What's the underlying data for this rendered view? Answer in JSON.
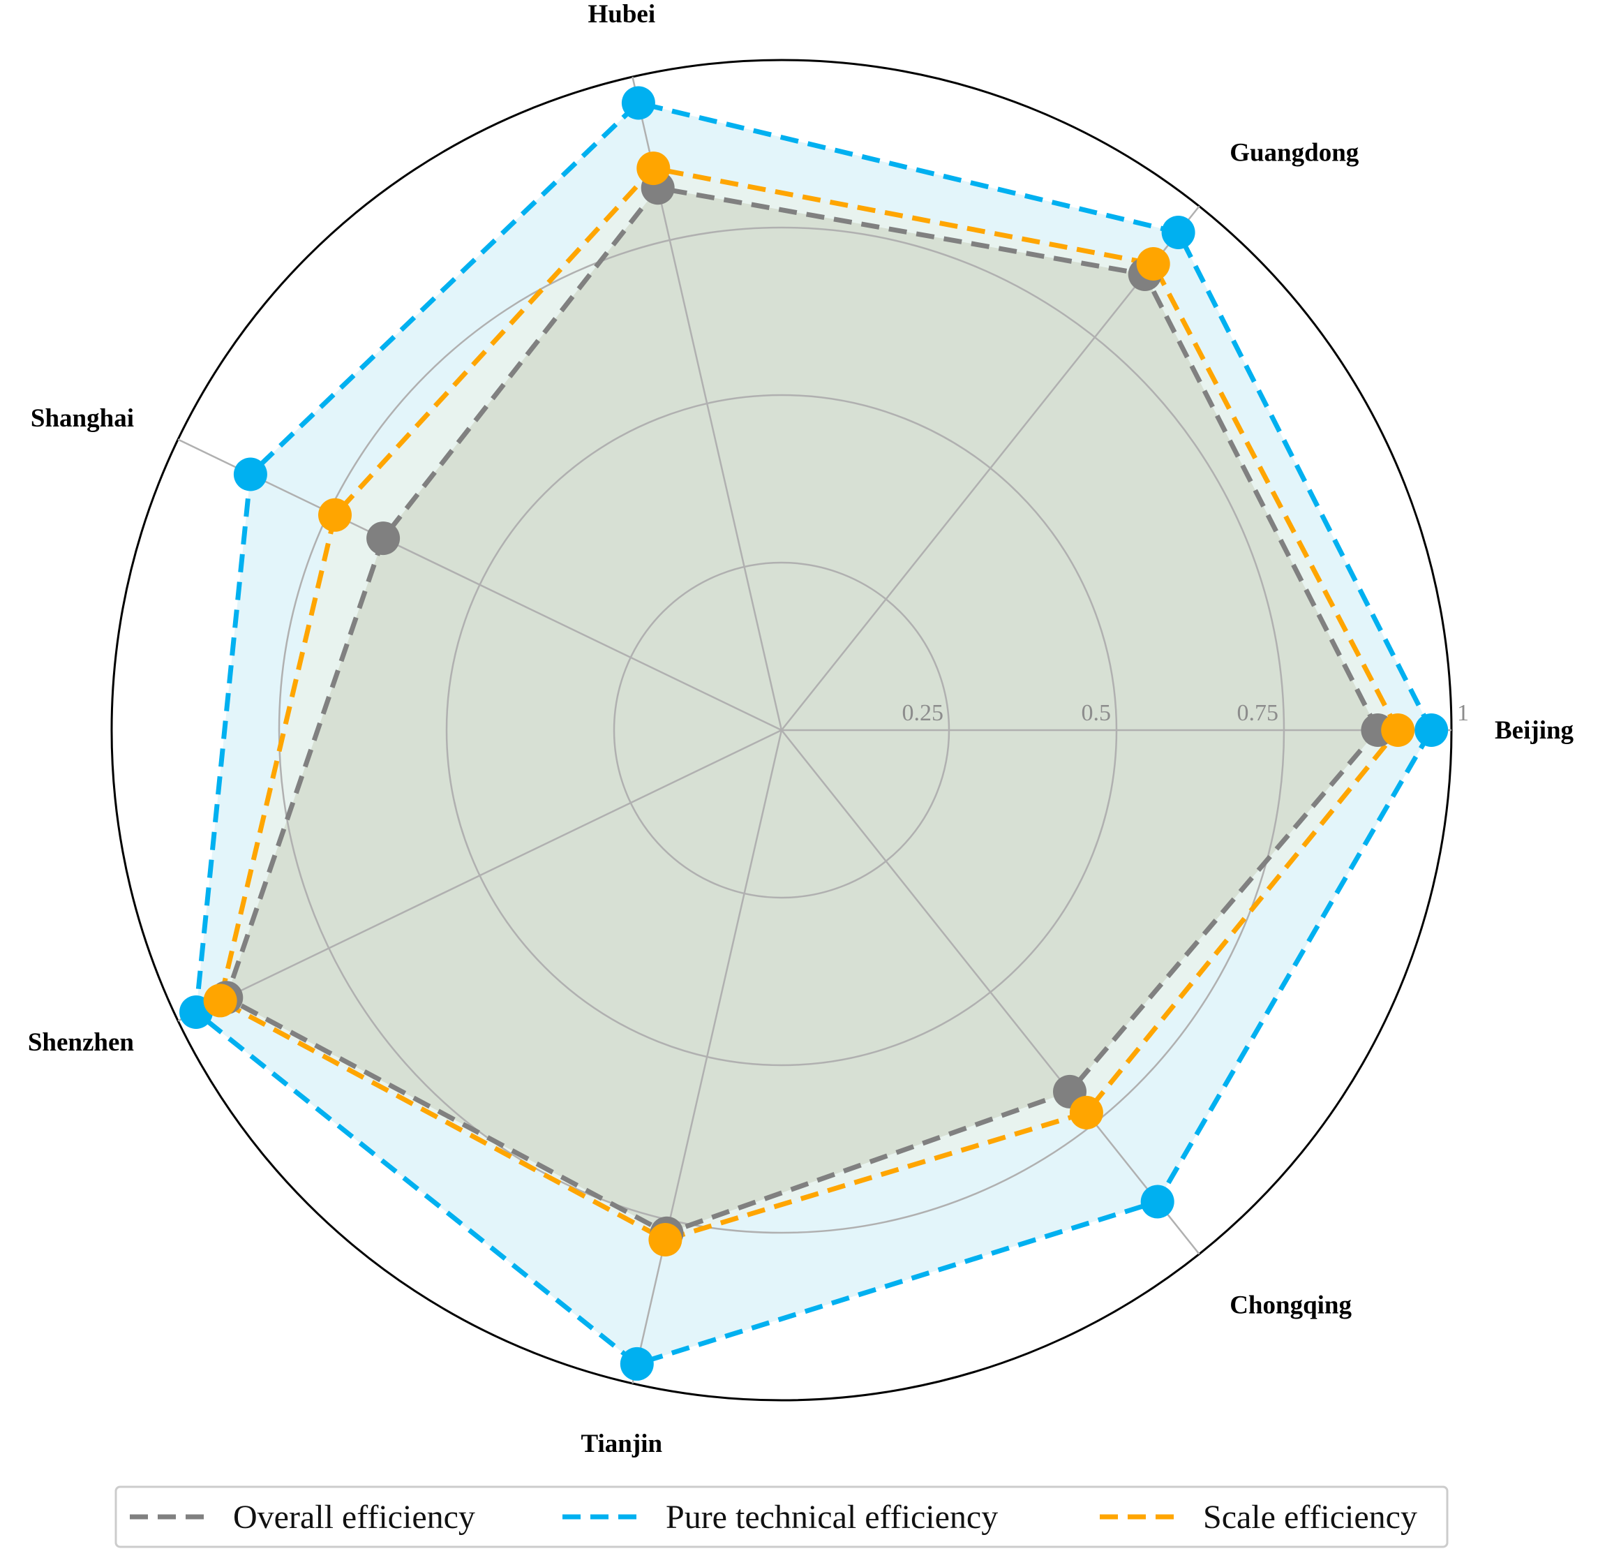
{
  "chart_data": {
    "type": "radar",
    "title": "",
    "categories": [
      "Beijing",
      "Guangdong",
      "Hubei",
      "Shanghai",
      "Shenzhen",
      "Tianjin",
      "Chongqing"
    ],
    "radial_ticks": [
      "0.25",
      "0.5",
      "0.75",
      "1"
    ],
    "radial_tick_values": [
      0.25,
      0.5,
      0.75,
      1
    ],
    "rlim": [
      0,
      1
    ],
    "grid": true,
    "legend_position": "bottom",
    "series": [
      {
        "name": "Overall efficiency",
        "color": "#808080",
        "fill": "#e9eee2",
        "values": [
          0.89,
          0.87,
          0.83,
          0.66,
          0.92,
          0.77,
          0.69
        ]
      },
      {
        "name": "Pure technical efficiency",
        "color": "#00b0f0",
        "fill": "#e3f5fa",
        "values": [
          0.97,
          0.95,
          0.96,
          0.88,
          0.97,
          0.97,
          0.9
        ]
      },
      {
        "name": "Scale efficiency",
        "color": "#ffa500",
        "fill": "#ecf0e6",
        "values": [
          0.92,
          0.89,
          0.86,
          0.74,
          0.93,
          0.78,
          0.73
        ]
      }
    ]
  }
}
